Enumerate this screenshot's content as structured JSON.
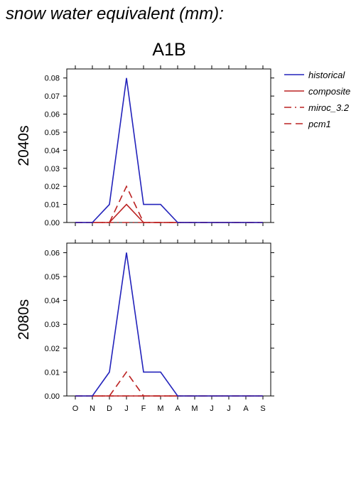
{
  "header": {
    "title": "snow water equivalent (mm):",
    "scenario": "A1B"
  },
  "legend": {
    "placement": "top-right",
    "items": [
      {
        "label": "historical",
        "color": "#2222bb",
        "dash": "solid"
      },
      {
        "label": "composite",
        "color": "#bb2222",
        "dash": "solid"
      },
      {
        "label": "miroc_3.2",
        "color": "#bb2222",
        "dash": "long-dash-dot"
      },
      {
        "label": "pcm1",
        "color": "#bb2222",
        "dash": "long-dash"
      }
    ]
  },
  "chart_data": [
    {
      "type": "line",
      "row_label": "2040s",
      "categories": [
        "O",
        "N",
        "D",
        "J",
        "F",
        "M",
        "A",
        "M",
        "J",
        "J",
        "A",
        "S"
      ],
      "ylim": [
        0,
        0.085
      ],
      "yticks": [
        "0.00",
        "0.01",
        "0.02",
        "0.03",
        "0.04",
        "0.05",
        "0.06",
        "0.07",
        "0.08"
      ],
      "grid": false,
      "series": [
        {
          "name": "historical",
          "values": [
            0,
            0,
            0.01,
            0.08,
            0.01,
            0.01,
            0,
            0,
            0,
            0,
            0,
            0
          ]
        },
        {
          "name": "composite",
          "values": [
            0,
            0,
            0,
            0.01,
            0,
            0,
            0,
            0,
            0,
            0,
            0,
            0
          ]
        },
        {
          "name": "miroc_3.2",
          "values": [
            0,
            0,
            0,
            0,
            0,
            0,
            0,
            0,
            0,
            0,
            0,
            0
          ]
        },
        {
          "name": "pcm1",
          "values": [
            0,
            0,
            0,
            0.02,
            0,
            0,
            0,
            0,
            0,
            0,
            0,
            0
          ]
        }
      ]
    },
    {
      "type": "line",
      "row_label": "2080s",
      "categories": [
        "O",
        "N",
        "D",
        "J",
        "F",
        "M",
        "A",
        "M",
        "J",
        "J",
        "A",
        "S"
      ],
      "ylim": [
        0,
        0.064
      ],
      "yticks": [
        "0.00",
        "0.01",
        "0.02",
        "0.03",
        "0.04",
        "0.05",
        "0.06"
      ],
      "xticks_shown": true,
      "grid": false,
      "series": [
        {
          "name": "historical",
          "values": [
            0,
            0,
            0.01,
            0.06,
            0.01,
            0.01,
            0,
            0,
            0,
            0,
            0,
            0
          ]
        },
        {
          "name": "composite",
          "values": [
            0,
            0,
            0,
            0,
            0,
            0,
            0,
            0,
            0,
            0,
            0,
            0
          ]
        },
        {
          "name": "miroc_3.2",
          "values": [
            0,
            0,
            0,
            0,
            0,
            0,
            0,
            0,
            0,
            0,
            0,
            0
          ]
        },
        {
          "name": "pcm1",
          "values": [
            0,
            0,
            0,
            0.01,
            0,
            0,
            0,
            0,
            0,
            0,
            0,
            0
          ]
        }
      ]
    }
  ]
}
